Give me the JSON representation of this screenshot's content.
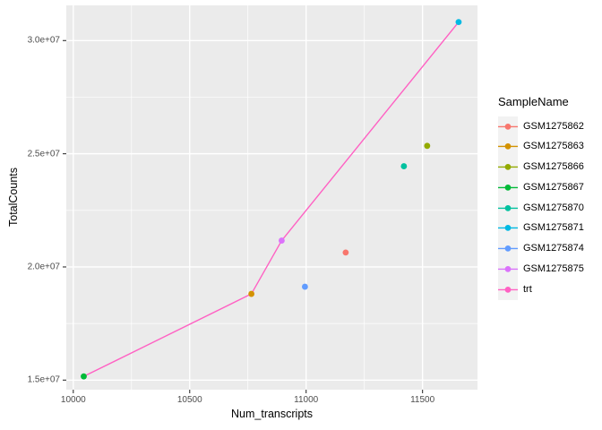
{
  "chart_data": {
    "type": "scatter",
    "title": "",
    "xlabel": "Num_transcripts",
    "ylabel": "TotalCounts",
    "xlim": [
      9970,
      11736
    ],
    "ylim": [
      14577000,
      31555000
    ],
    "grid": true,
    "x_ticks": {
      "values": [
        10000,
        10500,
        11000,
        11500
      ],
      "labels": [
        "10000",
        "10500",
        "11000",
        "11500"
      ],
      "minor": [
        10250,
        10750,
        11250
      ]
    },
    "y_ticks": {
      "values": [
        15000000,
        20000000,
        25000000,
        30000000
      ],
      "labels": [
        "1.5e+07",
        "2.0e+07",
        "2.5e+07",
        "3.0e+07"
      ],
      "minor": [
        17500000,
        22500000,
        27500000
      ]
    },
    "legend": {
      "title": "SampleName",
      "position": "right"
    },
    "style": {
      "panel_bg": "#ebebeb",
      "grid_color": "#ffffff",
      "legend_key_bg": "#f2f2f2",
      "tick_mark_color": "#333333",
      "tick_label_color": "#4d4d4d",
      "text_color": "#000000"
    },
    "series": [
      {
        "name": "GSM1275862",
        "color": "#F8766D",
        "geom": "point",
        "points": [
          [
            11170,
            20637971
          ]
        ]
      },
      {
        "name": "GSM1275863",
        "color": "#D39200",
        "geom": "point",
        "points": [
          [
            10765,
            18809481
          ]
        ]
      },
      {
        "name": "GSM1275866",
        "color": "#93AA00",
        "geom": "point",
        "points": [
          [
            11520,
            25348649
          ]
        ]
      },
      {
        "name": "GSM1275867",
        "color": "#00BA38",
        "geom": "point",
        "points": [
          [
            10045,
            15163415
          ]
        ]
      },
      {
        "name": "GSM1275870",
        "color": "#00C19F",
        "geom": "point",
        "points": [
          [
            11420,
            24448408
          ]
        ]
      },
      {
        "name": "GSM1275871",
        "color": "#00B9E3",
        "geom": "point",
        "points": [
          [
            11655,
            30818215
          ]
        ]
      },
      {
        "name": "GSM1275874",
        "color": "#619CFF",
        "geom": "point",
        "points": [
          [
            10995,
            19126151
          ]
        ]
      },
      {
        "name": "GSM1275875",
        "color": "#DB72FB",
        "geom": "point",
        "points": [
          [
            10895,
            21164133
          ]
        ]
      },
      {
        "name": "trt",
        "color": "#FF61C3",
        "geom": "line",
        "points": [
          [
            10045,
            15163415
          ],
          [
            10765,
            18809481
          ],
          [
            10895,
            21164133
          ],
          [
            11655,
            30818215
          ]
        ]
      }
    ]
  }
}
